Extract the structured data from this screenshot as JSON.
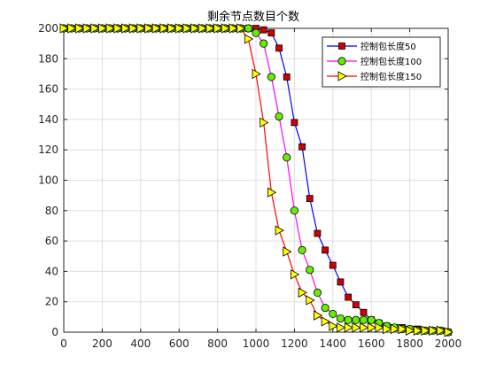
{
  "chart_data": {
    "type": "line",
    "title": "剩余节点数目个数",
    "xlabel": "",
    "ylabel": "",
    "xlim": [
      0,
      2000
    ],
    "ylim": [
      0,
      200
    ],
    "xticks": [
      0,
      200,
      400,
      600,
      800,
      1000,
      1200,
      1400,
      1600,
      1800,
      2000
    ],
    "yticks": [
      0,
      20,
      40,
      60,
      80,
      100,
      120,
      140,
      160,
      180,
      200
    ],
    "grid": true,
    "legend_position": "top-right",
    "x": [
      0,
      40,
      80,
      120,
      160,
      200,
      240,
      280,
      320,
      360,
      400,
      440,
      480,
      520,
      560,
      600,
      640,
      680,
      720,
      760,
      800,
      840,
      880,
      920,
      960,
      1000,
      1040,
      1080,
      1120,
      1160,
      1200,
      1240,
      1280,
      1320,
      1360,
      1400,
      1440,
      1480,
      1520,
      1560,
      1600,
      1640,
      1680,
      1720,
      1760,
      1800,
      1840,
      1880,
      1920,
      1960,
      2000
    ],
    "series": [
      {
        "name": "控制包长度50",
        "line_color": "#0000ff",
        "marker": "square",
        "marker_color": "#d40000",
        "values": [
          200,
          200,
          200,
          200,
          200,
          200,
          200,
          200,
          200,
          200,
          200,
          200,
          200,
          200,
          200,
          200,
          200,
          200,
          200,
          200,
          200,
          200,
          200,
          200,
          200,
          200,
          199,
          197,
          187,
          168,
          138,
          122,
          88,
          65,
          54,
          44,
          33,
          23,
          18,
          13,
          8,
          6,
          4,
          3,
          3,
          2,
          2,
          1,
          1,
          1,
          0
        ]
      },
      {
        "name": "控制包长度100",
        "line_color": "#ff00ff",
        "marker": "circle",
        "marker_color": "#66ee00",
        "values": [
          200,
          200,
          200,
          200,
          200,
          200,
          200,
          200,
          200,
          200,
          200,
          200,
          200,
          200,
          200,
          200,
          200,
          200,
          200,
          200,
          200,
          200,
          200,
          200,
          200,
          197,
          190,
          168,
          142,
          115,
          80,
          54,
          41,
          26,
          16,
          12,
          9,
          8,
          8,
          8,
          8,
          6,
          4,
          3,
          2,
          2,
          1,
          1,
          1,
          1,
          0
        ]
      },
      {
        "name": "控制包长度150",
        "line_color": "#ff0000",
        "marker": "triangle-right",
        "marker_color": "#ffff00",
        "values": [
          200,
          200,
          200,
          200,
          200,
          200,
          200,
          200,
          200,
          200,
          200,
          200,
          200,
          200,
          200,
          200,
          200,
          200,
          200,
          200,
          200,
          200,
          200,
          200,
          193,
          170,
          138,
          92,
          67,
          53,
          38,
          26,
          21,
          11,
          7,
          4,
          3,
          3,
          3,
          3,
          3,
          3,
          2,
          2,
          2,
          1,
          1,
          1,
          1,
          1,
          0
        ]
      }
    ]
  }
}
